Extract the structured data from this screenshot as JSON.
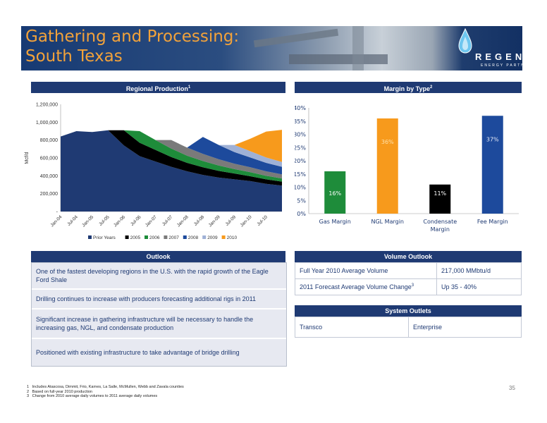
{
  "header": {
    "title_line1": "Gathering and Processing:",
    "title_line2": "South Texas",
    "logo_text": "REGENCY",
    "logo_sub": "ENERGY PARTNERS"
  },
  "left_panel_title": "Regional Production",
  "left_panel_sup": "1",
  "right_panel_title": "Margin by Type",
  "right_panel_sup": "2",
  "chart_data": [
    {
      "type": "area",
      "ylabel": "Mcf/d",
      "ylim": [
        0,
        1200000
      ],
      "y_ticks": [
        "1,200,000",
        "1,000,000",
        "800,000",
        "600,000",
        "400,000",
        "200,000",
        "-"
      ],
      "x_ticks": [
        "Jan-04",
        "Jul-04",
        "Jan-05",
        "Jul-05",
        "Jan-06",
        "Jul-06",
        "Jan-07",
        "Jul-07",
        "Jan-08",
        "Jul-08",
        "Jan-09",
        "Jul-09",
        "Jan-10",
        "Jul-10"
      ],
      "x": [
        "Jan-04",
        "Jul-04",
        "Jan-05",
        "Jul-05",
        "Jan-06",
        "Jul-06",
        "Jan-07",
        "Jul-07",
        "Jan-08",
        "Jul-08",
        "Jan-09",
        "Jul-09",
        "Jan-10",
        "Jul-10",
        "Nov-10"
      ],
      "series": [
        {
          "name": "Prior Years",
          "color": "#1f3a73",
          "values": [
            840000,
            900000,
            890000,
            910000,
            740000,
            620000,
            560000,
            500000,
            450000,
            410000,
            380000,
            360000,
            340000,
            310000,
            290000
          ]
        },
        {
          "name": "2005",
          "color": "#000000",
          "values": [
            0,
            0,
            0,
            0,
            170000,
            150000,
            130000,
            110000,
            95000,
            85000,
            75000,
            65000,
            55000,
            50000,
            45000
          ]
        },
        {
          "name": "2006",
          "color": "#1e8c3a",
          "values": [
            0,
            0,
            0,
            0,
            0,
            130000,
            110000,
            95000,
            80000,
            70000,
            60000,
            50000,
            45000,
            40000,
            35000
          ]
        },
        {
          "name": "2007",
          "color": "#7a7a7a",
          "values": [
            0,
            0,
            0,
            0,
            0,
            0,
            0,
            95000,
            90000,
            80000,
            70000,
            60000,
            55000,
            50000,
            45000
          ]
        },
        {
          "name": "2008",
          "color": "#1d4a9c",
          "values": [
            0,
            0,
            0,
            0,
            0,
            0,
            0,
            0,
            0,
            190000,
            160000,
            130000,
            110000,
            95000,
            85000
          ]
        },
        {
          "name": "2009",
          "color": "#9fb1d6",
          "values": [
            0,
            0,
            0,
            0,
            0,
            0,
            0,
            0,
            0,
            0,
            0,
            80000,
            70000,
            60000,
            55000
          ]
        },
        {
          "name": "2010",
          "color": "#f79a1c",
          "values": [
            0,
            0,
            0,
            0,
            0,
            0,
            0,
            0,
            0,
            0,
            0,
            0,
            140000,
            290000,
            360000
          ]
        }
      ],
      "legend": [
        "Prior Years",
        "2005",
        "2006",
        "2007",
        "2008",
        "2009",
        "2010"
      ],
      "legend_position": "bottom"
    },
    {
      "type": "bar",
      "categories": [
        "Gas Margin",
        "NGL Margin",
        "Condensate Margin",
        "Fee Margin"
      ],
      "values": [
        16,
        36,
        11,
        37
      ],
      "value_labels": [
        "16%",
        "36%",
        "11%",
        "37%"
      ],
      "colors": [
        "#1e8c3a",
        "#f79a1c",
        "#000000",
        "#1d4a9c"
      ],
      "ylim": [
        0,
        40
      ],
      "y_ticks": [
        "0%",
        "5%",
        "10%",
        "15%",
        "20%",
        "25%",
        "30%",
        "35%",
        "40%"
      ]
    }
  ],
  "outlook": {
    "title": "Outlook",
    "items": [
      "One of the fastest developing regions in the U.S. with the rapid growth of the Eagle Ford Shale",
      "Drilling continues to increase with producers forecasting additional rigs in 2011",
      "Significant increase in gathering infrastructure will be necessary to handle the increasing gas, NGL, and condensate production",
      "Positioned with existing infrastructure to take advantage of bridge drilling"
    ]
  },
  "volume_outlook": {
    "title": "Volume Outlook",
    "rows": [
      {
        "label": "Full Year 2010 Average Volume",
        "value": "217,000 MMbtu/d"
      },
      {
        "label": "2011 Forecast Average Volume Change",
        "sup": "3",
        "value": "Up 35 - 40%"
      }
    ]
  },
  "system_outlets": {
    "title": "System Outlets",
    "items": [
      "Transco",
      "Enterprise"
    ]
  },
  "footnotes": [
    {
      "num": "1",
      "text": "Includes Atascosa, Dimmit, Frio, Karnes, La Salle, McMullen, Webb and Zavala counties"
    },
    {
      "num": "2",
      "text": "Based on full-year 2010 production"
    },
    {
      "num": "3",
      "text": "Change from 2010 average daily volumes to 2011 average daily volumes"
    }
  ],
  "page_number": "35"
}
